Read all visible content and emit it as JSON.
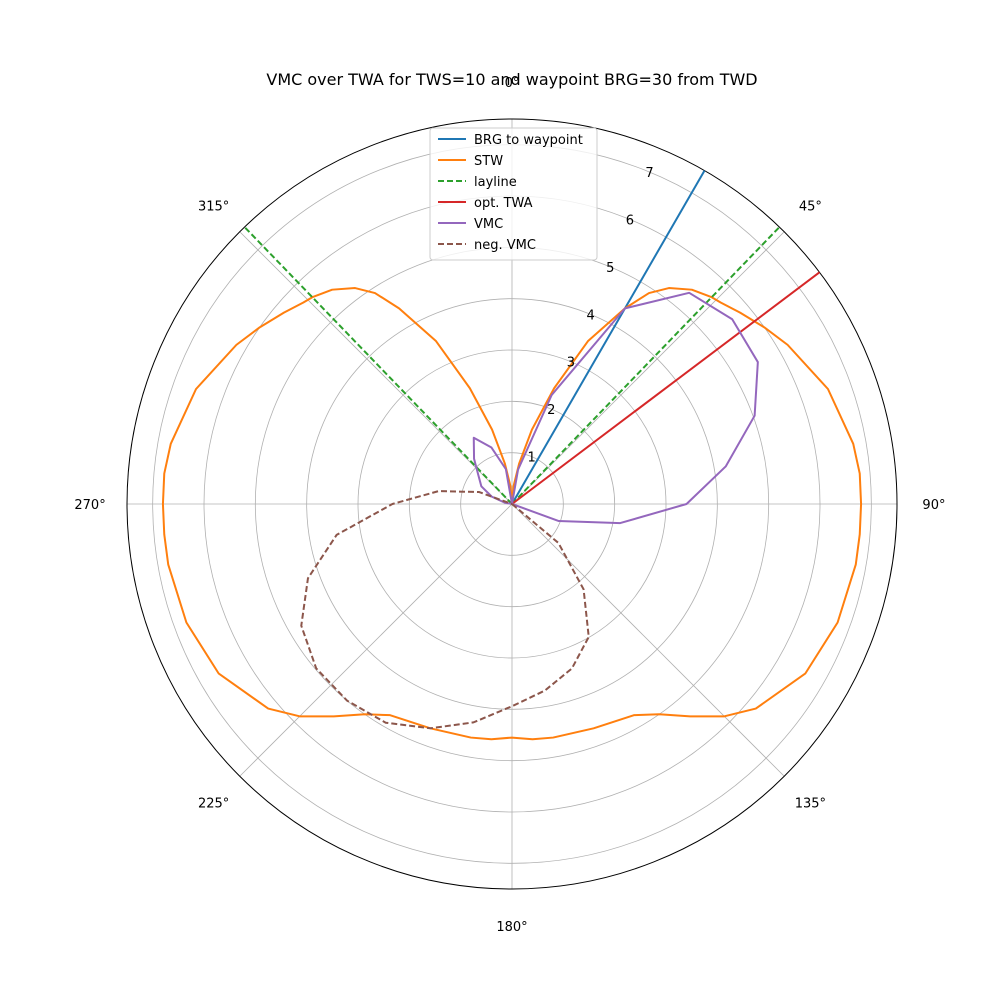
{
  "chart_data": {
    "type": "polar-line",
    "title": "VMC over TWA for TWS=10 and waypoint BRG=30 from TWD",
    "theta_direction": "clockwise",
    "theta_zero": "top",
    "r_range": [
      0,
      7.5
    ],
    "r_ticks": [
      1,
      2,
      3,
      4,
      5,
      6,
      7
    ],
    "r_tick_labels": [
      "1",
      "2",
      "3",
      "4",
      "5",
      "6",
      "7"
    ],
    "r_label_angle_deg": 22.5,
    "theta_ticks_deg": [
      0,
      45,
      90,
      135,
      180,
      225,
      270,
      315
    ],
    "theta_tick_labels": [
      "0°",
      "45°",
      "90°",
      "135°",
      "180°",
      "225°",
      "270°",
      "315°"
    ],
    "grid": true,
    "legend_position": "upper center",
    "series": [
      {
        "name": "BRG to waypoint",
        "color": "#1f77b4",
        "dash": false,
        "theta_deg": [
          30,
          30
        ],
        "r": [
          0,
          7.5
        ]
      },
      {
        "name": "STW",
        "color": "#ff7f0e",
        "dash": false,
        "theta_deg": [
          0,
          5,
          10,
          15,
          20,
          25,
          30,
          33,
          36,
          40,
          44,
          46,
          50,
          55,
          60,
          70,
          80,
          85,
          90,
          95,
          100,
          110,
          120,
          130,
          135,
          140,
          145,
          150,
          160,
          170,
          175,
          180,
          185,
          190,
          200,
          210,
          215,
          220,
          225,
          230,
          240,
          250,
          260,
          265,
          270,
          275,
          280,
          290,
          300,
          305,
          310,
          314,
          316,
          320,
          324,
          327,
          330,
          335,
          340,
          345,
          350,
          355,
          360
        ],
        "r": [
          0,
          0.35,
          0.8,
          1.5,
          2.4,
          3.5,
          4.4,
          4.9,
          5.2,
          5.45,
          5.6,
          5.65,
          5.8,
          6.0,
          6.2,
          6.55,
          6.75,
          6.8,
          6.8,
          6.8,
          6.8,
          6.75,
          6.6,
          6.2,
          5.85,
          5.4,
          5.0,
          4.75,
          4.65,
          4.62,
          4.6,
          4.55,
          4.6,
          4.62,
          4.65,
          4.75,
          5.0,
          5.4,
          5.85,
          6.2,
          6.6,
          6.75,
          6.8,
          6.8,
          6.8,
          6.8,
          6.75,
          6.55,
          6.2,
          6.0,
          5.8,
          5.65,
          5.6,
          5.45,
          5.2,
          4.9,
          4.4,
          3.5,
          2.4,
          1.5,
          0.8,
          0.35,
          0
        ]
      },
      {
        "name": "layline",
        "color": "#2ca02c",
        "dash": true,
        "theta_deg": [
          44,
          44
        ],
        "r": [
          0,
          7.5
        ],
        "extra_segments": [
          {
            "theta_deg": [
              316,
              316
            ],
            "r": [
              0,
              7.5
            ]
          }
        ]
      },
      {
        "name": "opt. TWA",
        "color": "#d62728",
        "dash": false,
        "theta_deg": [
          53,
          53
        ],
        "r": [
          0,
          7.5
        ]
      },
      {
        "name": "VMC",
        "color": "#9467bd",
        "dash": false,
        "theta_deg": [
          -90,
          -80,
          -70,
          -60,
          -50,
          -40,
          -30,
          -20,
          -10,
          0,
          10,
          20,
          30,
          40,
          50,
          60,
          70,
          80,
          90,
          100,
          110,
          120
        ],
        "r": [
          0,
          0.14,
          0.42,
          0.69,
          0.85,
          1.15,
          1.49,
          1.17,
          0.69,
          0,
          0.68,
          2.26,
          4.4,
          5.37,
          5.6,
          5.53,
          5.03,
          4.23,
          3.4,
          2.14,
          0.97,
          0
        ]
      },
      {
        "name": "neg. VMC",
        "color": "#8c564b",
        "dash": true,
        "theta_deg": [
          120,
          130,
          140,
          150,
          160,
          170,
          180,
          190,
          200,
          210,
          220,
          230,
          240,
          250,
          260,
          270,
          280,
          290,
          300,
          310,
          320
        ],
        "r": [
          0,
          1.18,
          2.17,
          2.99,
          3.41,
          3.69,
          3.94,
          4.32,
          4.65,
          4.92,
          5.0,
          4.98,
          4.74,
          4.23,
          3.47,
          2.33,
          1.45,
          0.68,
          0,
          0,
          0
        ]
      }
    ]
  }
}
